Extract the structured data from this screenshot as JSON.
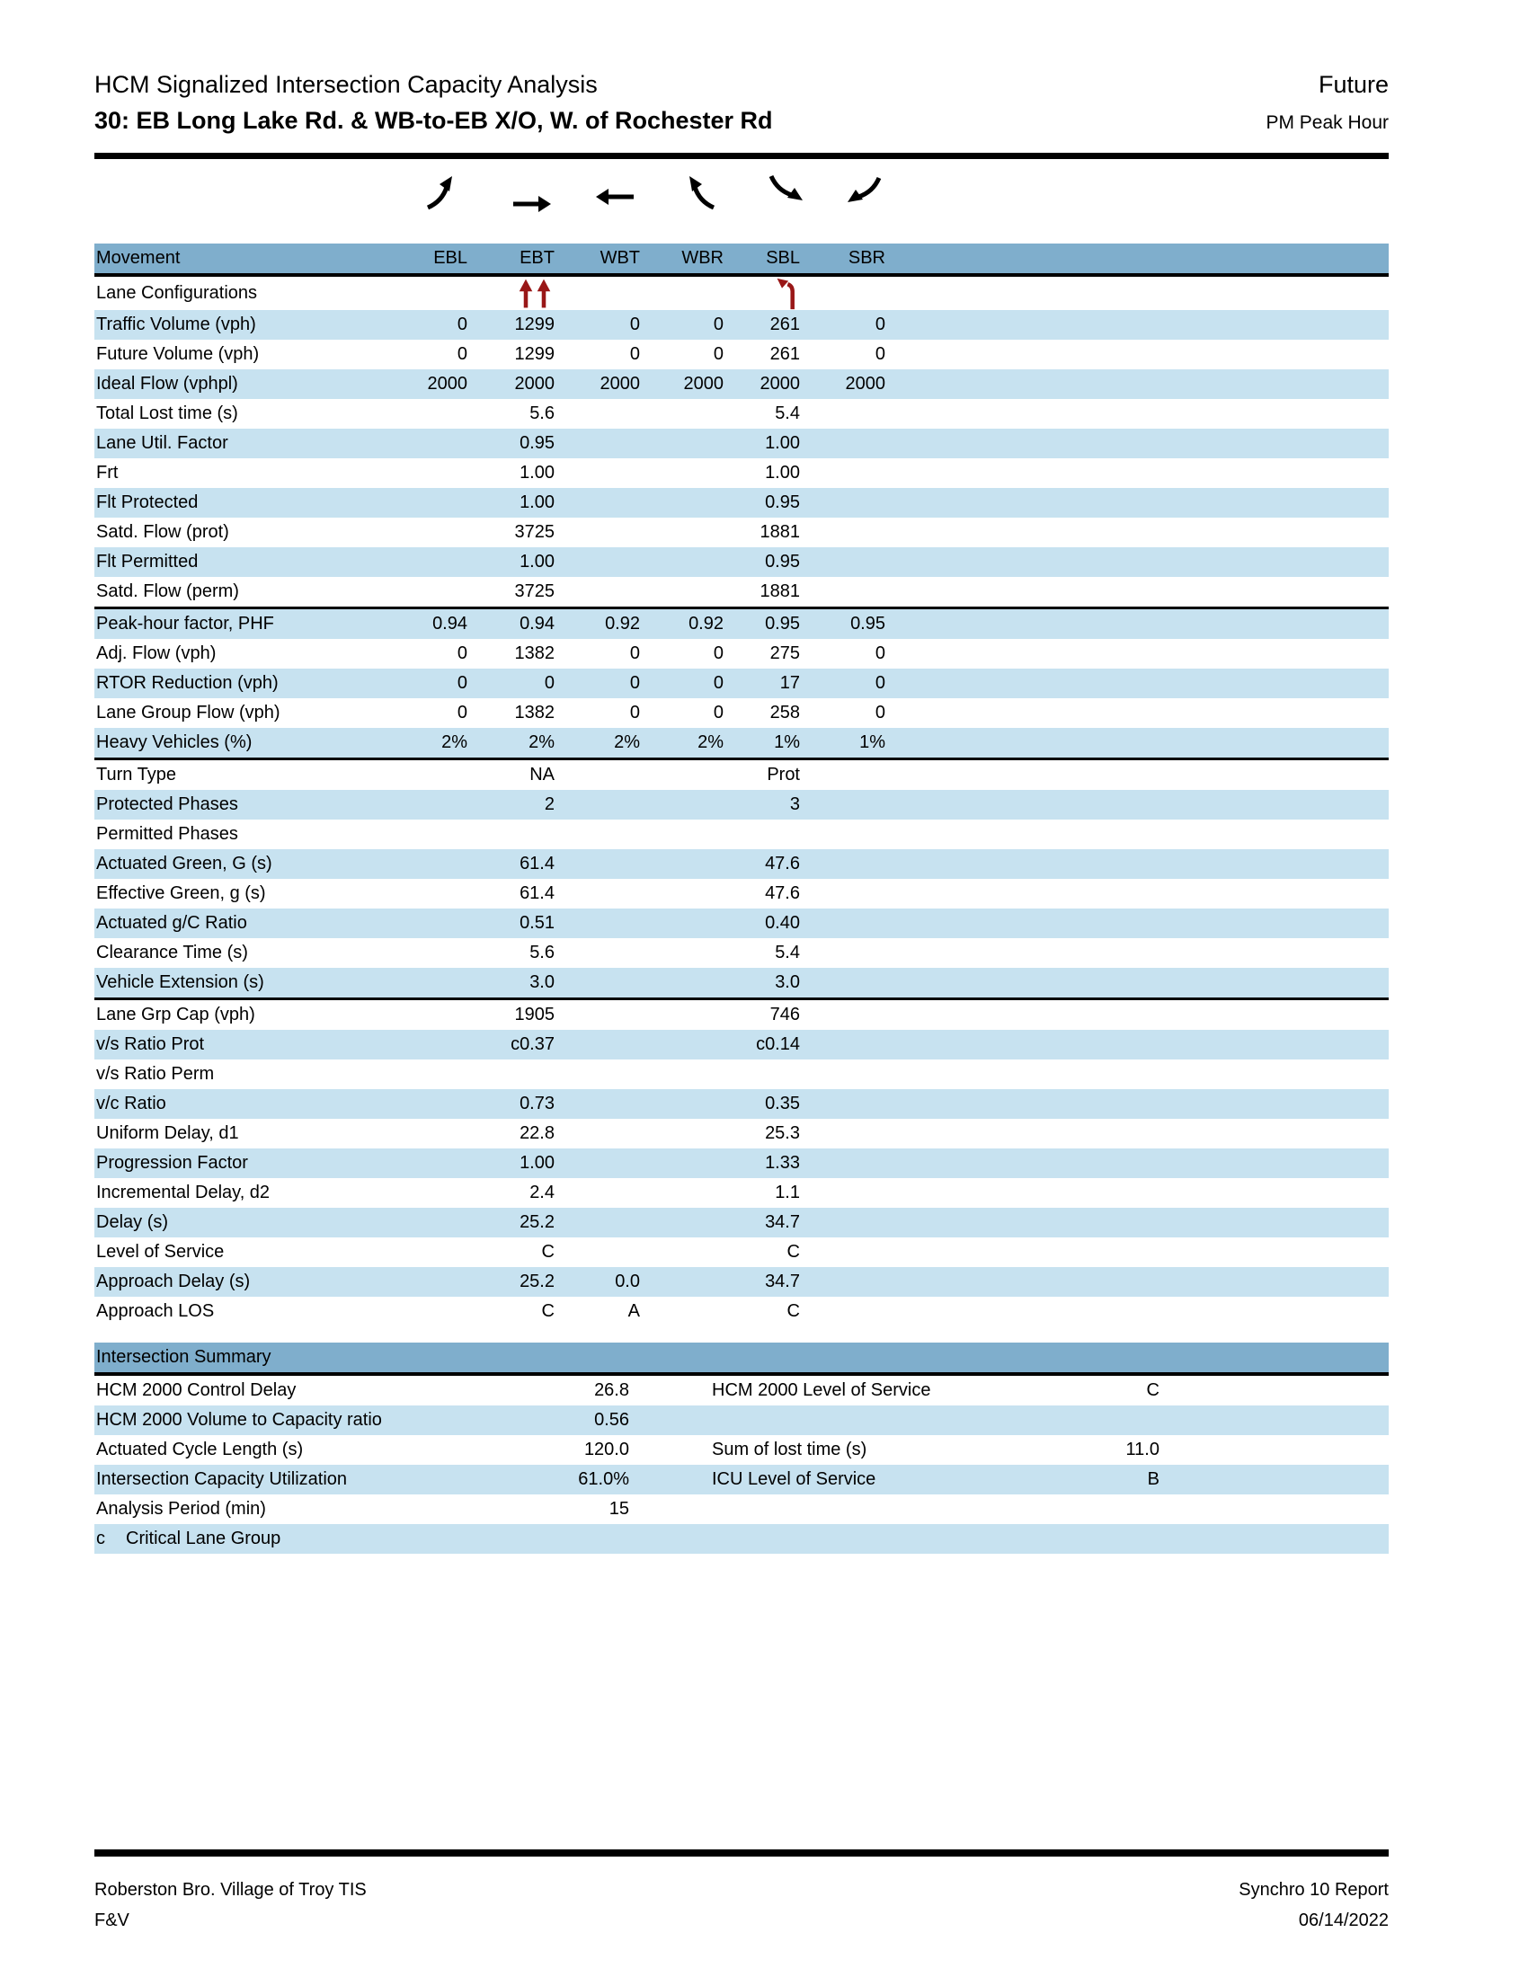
{
  "header": {
    "title": "HCM Signalized Intersection Capacity Analysis",
    "subtitle": "30: EB Long Lake Rd. & WB-to-EB X/O, W. of Rochester Rd",
    "scenario": "Future",
    "period": "PM Peak Hour"
  },
  "movements": {
    "label_header": "Movement",
    "columns": [
      "EBL",
      "EBT",
      "WBT",
      "WBR",
      "SBL",
      "SBR"
    ],
    "direction_arrows": [
      {
        "name": "ebl-direction-arrow",
        "shape": "curve-up-right"
      },
      {
        "name": "ebt-direction-arrow",
        "shape": "straight-right"
      },
      {
        "name": "wbt-direction-arrow",
        "shape": "straight-left"
      },
      {
        "name": "wbr-direction-arrow",
        "shape": "curve-up-left"
      },
      {
        "name": "sbl-direction-arrow",
        "shape": "curve-down-right"
      },
      {
        "name": "sbr-direction-arrow",
        "shape": "curve-down-left"
      }
    ],
    "rows": [
      {
        "label": "Lane Configurations",
        "values": [
          "",
          "icon:dual-through-lane",
          "",
          "",
          "icon:left-turn-lane",
          ""
        ]
      },
      {
        "label": "Traffic Volume (vph)",
        "values": [
          "0",
          "1299",
          "0",
          "0",
          "261",
          "0"
        ]
      },
      {
        "label": "Future Volume (vph)",
        "values": [
          "0",
          "1299",
          "0",
          "0",
          "261",
          "0"
        ]
      },
      {
        "label": "Ideal Flow (vphpl)",
        "values": [
          "2000",
          "2000",
          "2000",
          "2000",
          "2000",
          "2000"
        ]
      },
      {
        "label": "Total Lost time (s)",
        "values": [
          "",
          "5.6",
          "",
          "",
          "5.4",
          ""
        ]
      },
      {
        "label": "Lane Util. Factor",
        "values": [
          "",
          "0.95",
          "",
          "",
          "1.00",
          ""
        ]
      },
      {
        "label": "Frt",
        "values": [
          "",
          "1.00",
          "",
          "",
          "1.00",
          ""
        ]
      },
      {
        "label": "Flt Protected",
        "values": [
          "",
          "1.00",
          "",
          "",
          "0.95",
          ""
        ]
      },
      {
        "label": "Satd. Flow (prot)",
        "values": [
          "",
          "3725",
          "",
          "",
          "1881",
          ""
        ]
      },
      {
        "label": "Flt Permitted",
        "values": [
          "",
          "1.00",
          "",
          "",
          "0.95",
          ""
        ]
      },
      {
        "label": "Satd. Flow (perm)",
        "values": [
          "",
          "3725",
          "",
          "",
          "1881",
          ""
        ]
      },
      {
        "label": "Peak-hour factor, PHF",
        "values": [
          "0.94",
          "0.94",
          "0.92",
          "0.92",
          "0.95",
          "0.95"
        ]
      },
      {
        "label": "Adj. Flow (vph)",
        "values": [
          "0",
          "1382",
          "0",
          "0",
          "275",
          "0"
        ]
      },
      {
        "label": "RTOR Reduction (vph)",
        "values": [
          "0",
          "0",
          "0",
          "0",
          "17",
          "0"
        ]
      },
      {
        "label": "Lane Group Flow (vph)",
        "values": [
          "0",
          "1382",
          "0",
          "0",
          "258",
          "0"
        ]
      },
      {
        "label": "Heavy Vehicles (%)",
        "values": [
          "2%",
          "2%",
          "2%",
          "2%",
          "1%",
          "1%"
        ]
      },
      {
        "label": "Turn Type",
        "values": [
          "",
          "NA",
          "",
          "",
          "Prot",
          ""
        ]
      },
      {
        "label": "Protected Phases",
        "values": [
          "",
          "2",
          "",
          "",
          "3",
          ""
        ]
      },
      {
        "label": "Permitted Phases",
        "values": [
          "",
          "",
          "",
          "",
          "",
          ""
        ]
      },
      {
        "label": "Actuated Green, G (s)",
        "values": [
          "",
          "61.4",
          "",
          "",
          "47.6",
          ""
        ]
      },
      {
        "label": "Effective Green, g (s)",
        "values": [
          "",
          "61.4",
          "",
          "",
          "47.6",
          ""
        ]
      },
      {
        "label": "Actuated g/C Ratio",
        "values": [
          "",
          "0.51",
          "",
          "",
          "0.40",
          ""
        ]
      },
      {
        "label": "Clearance Time (s)",
        "values": [
          "",
          "5.6",
          "",
          "",
          "5.4",
          ""
        ]
      },
      {
        "label": "Vehicle Extension (s)",
        "values": [
          "",
          "3.0",
          "",
          "",
          "3.0",
          ""
        ]
      },
      {
        "label": "Lane Grp Cap (vph)",
        "values": [
          "",
          "1905",
          "",
          "",
          "746",
          ""
        ]
      },
      {
        "label": "v/s Ratio Prot",
        "values": [
          "",
          "c0.37",
          "",
          "",
          "c0.14",
          ""
        ]
      },
      {
        "label": "v/s Ratio Perm",
        "values": [
          "",
          "",
          "",
          "",
          "",
          ""
        ]
      },
      {
        "label": "v/c Ratio",
        "values": [
          "",
          "0.73",
          "",
          "",
          "0.35",
          ""
        ]
      },
      {
        "label": "Uniform Delay, d1",
        "values": [
          "",
          "22.8",
          "",
          "",
          "25.3",
          ""
        ]
      },
      {
        "label": "Progression Factor",
        "values": [
          "",
          "1.00",
          "",
          "",
          "1.33",
          ""
        ]
      },
      {
        "label": "Incremental Delay, d2",
        "values": [
          "",
          "2.4",
          "",
          "",
          "1.1",
          ""
        ]
      },
      {
        "label": "Delay (s)",
        "values": [
          "",
          "25.2",
          "",
          "",
          "34.7",
          ""
        ]
      },
      {
        "label": "Level of Service",
        "values": [
          "",
          "C",
          "",
          "",
          "C",
          ""
        ]
      },
      {
        "label": "Approach Delay (s)",
        "values": [
          "",
          "25.2",
          "0.0",
          "",
          "34.7",
          ""
        ]
      },
      {
        "label": "Approach LOS",
        "values": [
          "",
          "C",
          "A",
          "",
          "C",
          ""
        ]
      }
    ],
    "separators_after": [
      10,
      15,
      23
    ]
  },
  "summary": {
    "title": "Intersection Summary",
    "rows": [
      {
        "label": "HCM 2000 Control Delay",
        "value": "26.8",
        "label2": "HCM 2000 Level of Service",
        "value2": "C"
      },
      {
        "label": "HCM 2000 Volume to Capacity ratio",
        "value": "0.56",
        "label2": "",
        "value2": ""
      },
      {
        "label": "Actuated Cycle Length (s)",
        "value": "120.0",
        "label2": "Sum of lost time (s)",
        "value2": "11.0"
      },
      {
        "label": "Intersection Capacity Utilization",
        "value": "61.0%",
        "label2": "ICU Level of Service",
        "value2": "B"
      },
      {
        "label": "Analysis Period (min)",
        "value": "15",
        "label2": "",
        "value2": ""
      }
    ],
    "footnote": {
      "marker": "c",
      "text": "Critical Lane Group"
    }
  },
  "footer": {
    "left_line1": "Roberston Bro. Village of Troy TIS",
    "left_line2": "F&V",
    "right_line1": "Synchro 10 Report",
    "right_line2": "06/14/2022"
  },
  "colors": {
    "band_blue": "#7FAECC",
    "row_blue": "#C7E2F0",
    "lane_icon_red": "#991717",
    "text": "#000000"
  }
}
